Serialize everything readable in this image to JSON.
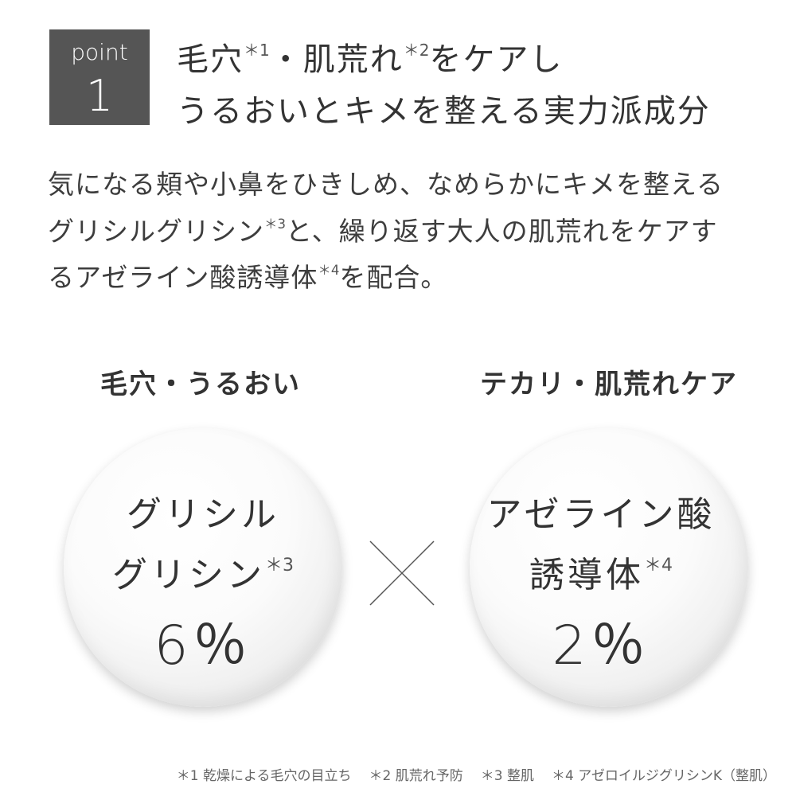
{
  "badge": {
    "word": "point",
    "number": "1"
  },
  "heading": {
    "line1": [
      "毛穴",
      "＊1",
      "・肌荒れ",
      "＊2",
      "をケアし"
    ],
    "line2": "うるおいとキメを整える実力派成分"
  },
  "body": {
    "line1": "気になる頬や小鼻をひきしめ、なめらかにキメを整える",
    "line2": [
      "グリシルグリシン",
      "＊3",
      "と、繰り返す大人の肌荒れをケアす"
    ],
    "line3": [
      "るアゼライン酸誘導体",
      "＊4",
      "を配合。"
    ]
  },
  "ingredients": [
    {
      "label": "毛穴・うるおい",
      "name": [
        "グリシル",
        "グリシン"
      ],
      "note": "＊3",
      "amount": "6％"
    },
    {
      "label": "テカリ・肌荒れケア",
      "name": [
        "アゼライン酸",
        "誘導体"
      ],
      "note": "＊4",
      "amount": "2％"
    }
  ],
  "footnotes": [
    "＊1 乾燥による毛穴の目立ち",
    "＊2 肌荒れ予防",
    "＊3 整肌",
    "＊4 アゼロイルジグリシンK（整肌）"
  ]
}
